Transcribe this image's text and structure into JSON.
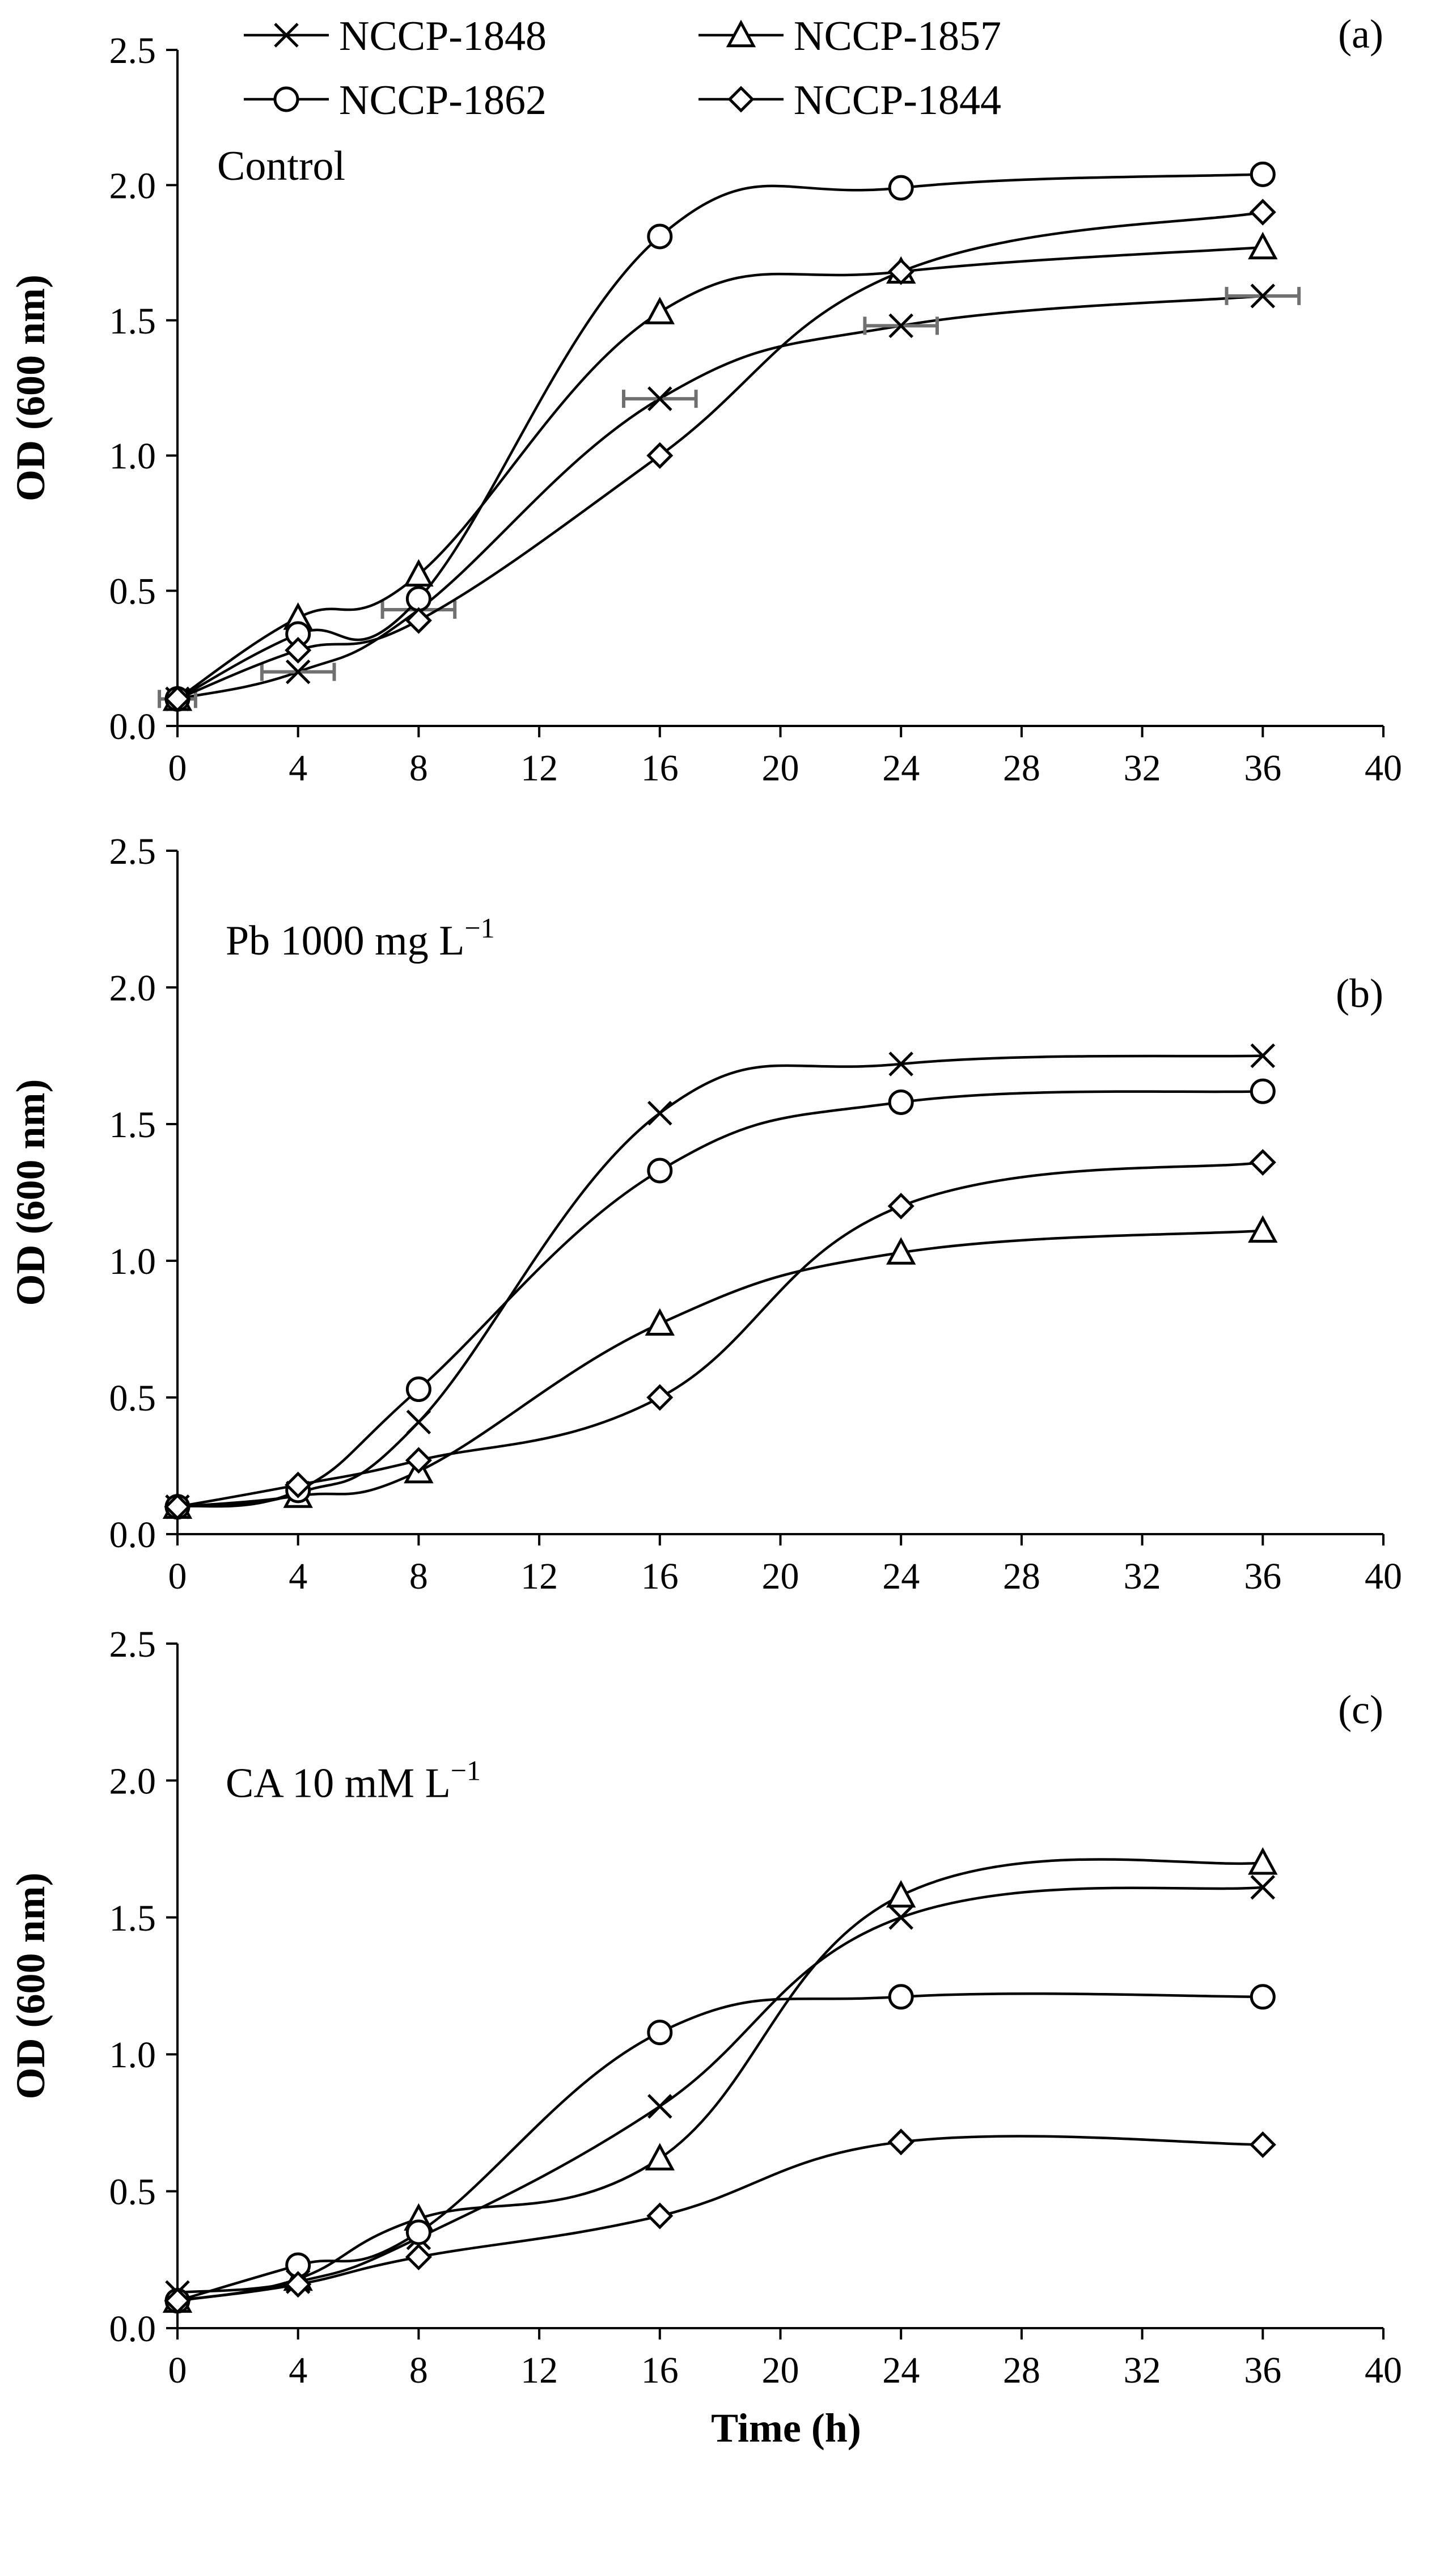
{
  "chart_data": [
    {
      "type": "line",
      "panel_label": "(a)",
      "condition_label": "Control",
      "xlabel": "",
      "ylabel": "OD (600 nm)",
      "xlim": [
        0,
        40
      ],
      "ylim": [
        0,
        2.5
      ],
      "x_ticks": [
        0,
        4,
        8,
        12,
        16,
        20,
        24,
        28,
        32,
        36,
        40
      ],
      "y_ticks": [
        0,
        0.5,
        1.0,
        1.5,
        2.0,
        2.5
      ],
      "x": [
        0,
        4,
        8,
        16,
        24,
        36
      ],
      "series": [
        {
          "name": "NCCP-1848",
          "marker": "x",
          "values": [
            0.1,
            0.2,
            0.43,
            1.21,
            1.48,
            1.59
          ],
          "x_error": [
            0.6,
            1.2,
            1.2,
            1.2,
            1.2,
            1.2
          ]
        },
        {
          "name": "NCCP-1857",
          "marker": "triangle",
          "values": [
            0.1,
            0.4,
            0.56,
            1.53,
            1.68,
            1.77
          ]
        },
        {
          "name": "NCCP-1862",
          "marker": "circle",
          "values": [
            0.1,
            0.34,
            0.47,
            1.81,
            1.99,
            2.04
          ]
        },
        {
          "name": "NCCP-1844",
          "marker": "diamond",
          "values": [
            0.1,
            0.28,
            0.39,
            1.0,
            1.68,
            1.9
          ]
        }
      ]
    },
    {
      "type": "line",
      "panel_label": "(b)",
      "condition_label": "Pb  1000 mg L",
      "condition_superscript": "−1",
      "xlabel": "",
      "ylabel": "OD (600 nm)",
      "xlim": [
        0,
        40
      ],
      "ylim": [
        0,
        2.5
      ],
      "x_ticks": [
        0,
        4,
        8,
        12,
        16,
        20,
        24,
        28,
        32,
        36,
        40
      ],
      "y_ticks": [
        0,
        0.5,
        1.0,
        1.5,
        2.0,
        2.5
      ],
      "x": [
        0,
        4,
        8,
        16,
        24,
        36
      ],
      "series": [
        {
          "name": "NCCP-1848",
          "marker": "x",
          "values": [
            0.1,
            0.15,
            0.41,
            1.54,
            1.72,
            1.75
          ]
        },
        {
          "name": "NCCP-1857",
          "marker": "triangle",
          "values": [
            0.1,
            0.14,
            0.23,
            0.77,
            1.03,
            1.11
          ]
        },
        {
          "name": "NCCP-1862",
          "marker": "circle",
          "values": [
            0.1,
            0.16,
            0.53,
            1.33,
            1.58,
            1.62
          ]
        },
        {
          "name": "NCCP-1844",
          "marker": "diamond",
          "values": [
            0.1,
            0.18,
            0.27,
            0.5,
            1.2,
            1.36
          ]
        }
      ]
    },
    {
      "type": "line",
      "panel_label": "(c)",
      "condition_label": "CA 10 mM L",
      "condition_superscript": "−1",
      "xlabel": "Time (h)",
      "ylabel": "OD (600 nm)",
      "xlim": [
        0,
        40
      ],
      "ylim": [
        0,
        2.5
      ],
      "x_ticks": [
        0,
        4,
        8,
        12,
        16,
        20,
        24,
        28,
        32,
        36,
        40
      ],
      "y_ticks": [
        0,
        0.5,
        1.0,
        1.5,
        2.0,
        2.5
      ],
      "x": [
        0,
        4,
        8,
        16,
        24,
        36
      ],
      "series": [
        {
          "name": "NCCP-1848",
          "marker": "x",
          "values": [
            0.13,
            0.17,
            0.33,
            0.81,
            1.5,
            1.61
          ]
        },
        {
          "name": "NCCP-1857",
          "marker": "triangle",
          "values": [
            0.1,
            0.18,
            0.4,
            0.62,
            1.58,
            1.7
          ]
        },
        {
          "name": "NCCP-1862",
          "marker": "circle",
          "values": [
            0.1,
            0.23,
            0.35,
            1.08,
            1.21,
            1.21
          ]
        },
        {
          "name": "NCCP-1844",
          "marker": "diamond",
          "values": [
            0.1,
            0.16,
            0.26,
            0.41,
            0.68,
            0.67
          ]
        }
      ]
    }
  ],
  "legend": {
    "entries": [
      {
        "name": "NCCP-1848",
        "marker": "x"
      },
      {
        "name": "NCCP-1857",
        "marker": "triangle"
      },
      {
        "name": "NCCP-1862",
        "marker": "circle"
      },
      {
        "name": "NCCP-1844",
        "marker": "diamond"
      }
    ]
  },
  "colors": {
    "line": "#000000",
    "error_bar": "#707070",
    "background": "#ffffff"
  }
}
